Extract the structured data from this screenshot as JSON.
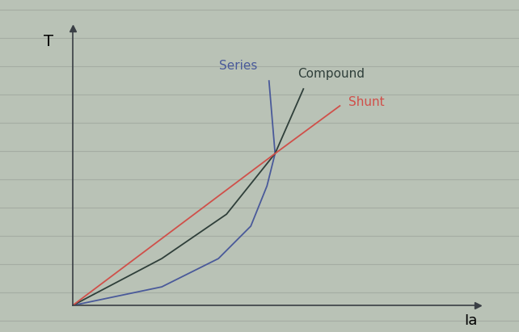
{
  "chart_data": {
    "type": "line",
    "x_label": "Ia",
    "y_label": "T",
    "xlim": [
      0,
      10
    ],
    "ylim": [
      0,
      10
    ],
    "tick_labels": false,
    "series": [
      {
        "name": "Series",
        "color": "#4a5a9a",
        "x": [
          0,
          2.2,
          3.6,
          4.4,
          4.8,
          5.0,
          4.85
        ],
        "values": [
          0,
          0.67,
          1.69,
          2.86,
          4.31,
          5.48,
          8.1
        ]
      },
      {
        "name": "Compound",
        "color": "#2f3f3a",
        "x": [
          0,
          2.2,
          3.8,
          5.0,
          5.7
        ],
        "values": [
          0,
          1.69,
          3.29,
          5.48,
          7.81
        ]
      },
      {
        "name": "Shunt",
        "color": "#d0504a",
        "x": [
          0,
          5.0,
          6.6
        ],
        "values": [
          0,
          5.48,
          7.2
        ]
      }
    ]
  }
}
